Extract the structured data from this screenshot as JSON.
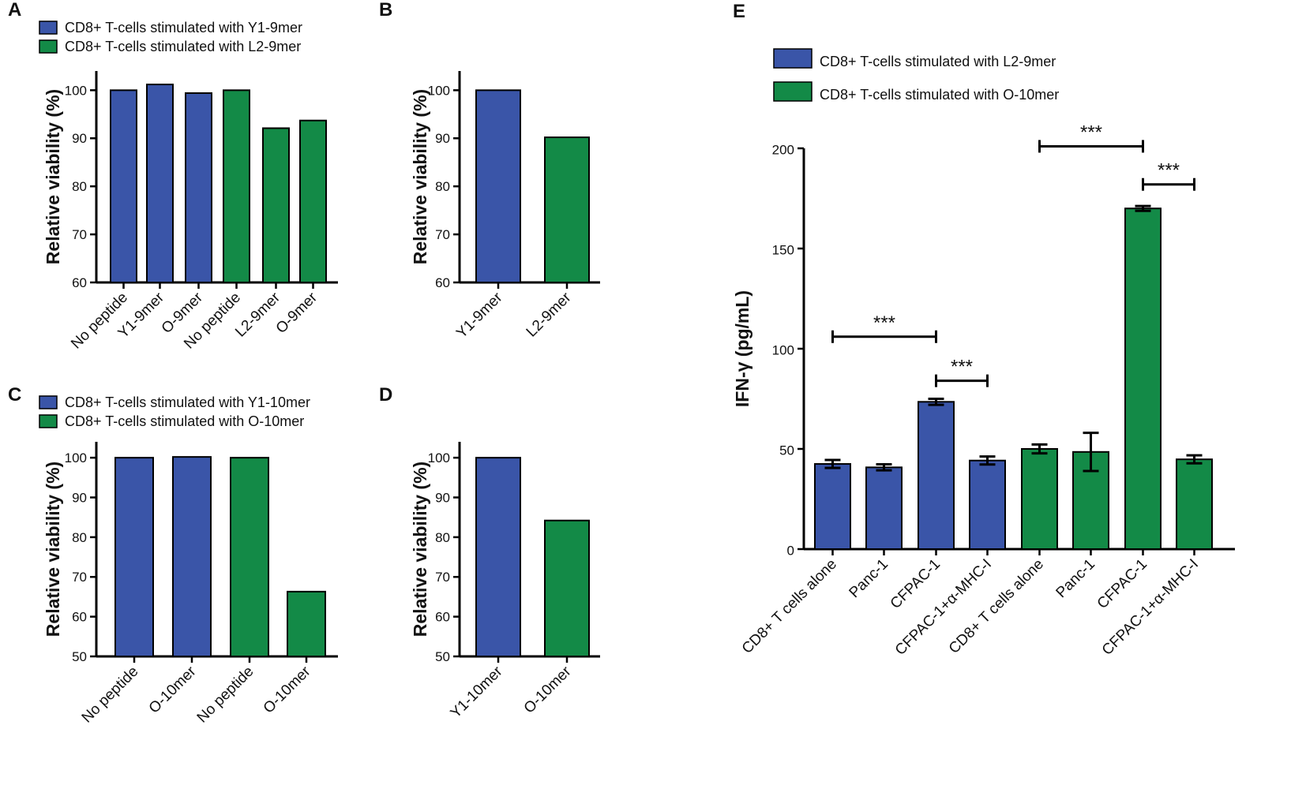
{
  "colors": {
    "blue": "#3a55a8",
    "green": "#138a47"
  },
  "chart_data": [
    {
      "panel": "A",
      "type": "bar",
      "categories": [
        "No peptide",
        "Y1-9mer",
        "O-9mer",
        "No peptide",
        "L2-9mer",
        "O-9mer"
      ],
      "values": [
        100,
        101.2,
        99.4,
        100,
        92.1,
        93.7
      ],
      "bar_colors": [
        "blue",
        "blue",
        "blue",
        "green",
        "green",
        "green"
      ],
      "legend": [
        {
          "label": "CD8+ T-cells stimulated with Y1-9mer",
          "color": "blue"
        },
        {
          "label": "CD8+ T-cells stimulated with L2-9mer",
          "color": "green"
        }
      ],
      "ylabel": "Relative viability (%)",
      "ylim": [
        60,
        104
      ],
      "yticks": [
        60,
        70,
        80,
        90,
        100
      ]
    },
    {
      "panel": "B",
      "type": "bar",
      "categories": [
        "Y1-9mer",
        "L2-9mer"
      ],
      "values": [
        100,
        90.2
      ],
      "bar_colors": [
        "blue",
        "green"
      ],
      "legend": [],
      "ylabel": "Relative viability (%)",
      "ylim": [
        60,
        104
      ],
      "yticks": [
        60,
        70,
        80,
        90,
        100
      ]
    },
    {
      "panel": "C",
      "type": "bar",
      "categories": [
        "No peptide",
        "O-10mer",
        "No peptide",
        "O-10mer"
      ],
      "values": [
        100,
        100.2,
        100,
        66.3
      ],
      "bar_colors": [
        "blue",
        "blue",
        "green",
        "green"
      ],
      "legend": [
        {
          "label": "CD8+ T-cells stimulated with Y1-10mer",
          "color": "blue"
        },
        {
          "label": "CD8+ T-cells stimulated with O-10mer",
          "color": "green"
        }
      ],
      "ylabel": "Relative viability (%)",
      "ylim": [
        50,
        104
      ],
      "yticks": [
        50,
        60,
        70,
        80,
        90,
        100
      ]
    },
    {
      "panel": "D",
      "type": "bar",
      "categories": [
        "Y1-10mer",
        "O-10mer"
      ],
      "values": [
        100,
        84.2
      ],
      "bar_colors": [
        "blue",
        "green"
      ],
      "legend": [],
      "ylabel": "Relative viability (%)",
      "ylim": [
        50,
        104
      ],
      "yticks": [
        50,
        60,
        70,
        80,
        90,
        100
      ]
    },
    {
      "panel": "E",
      "type": "bar",
      "categories": [
        "CD8+ T cells alone",
        "Panc-1",
        "CFPAC-1",
        "CFPAC-1+α-MHC-I",
        "CD8+ T cells alone",
        "Panc-1",
        "CFPAC-1",
        "CFPAC-1+α-MHC-I"
      ],
      "values": [
        42.5,
        40.8,
        73.5,
        44.2,
        50.0,
        48.5,
        170.0,
        44.8
      ],
      "errors": [
        2.0,
        1.5,
        1.5,
        2.0,
        2.2,
        9.5,
        1.2,
        2.0
      ],
      "bar_colors": [
        "blue",
        "blue",
        "blue",
        "blue",
        "green",
        "green",
        "green",
        "green"
      ],
      "legend": [
        {
          "label": "CD8+ T-cells stimulated with L2-9mer",
          "color": "blue"
        },
        {
          "label": "CD8+ T-cells stimulated with O-10mer",
          "color": "green"
        }
      ],
      "ylabel": "IFN-γ (pg/mL)",
      "ylim": [
        0,
        200
      ],
      "yticks": [
        0,
        50,
        100,
        150,
        200
      ],
      "significance": [
        {
          "from": 0,
          "to": 2,
          "label": "***",
          "y": 106
        },
        {
          "from": 2,
          "to": 3,
          "label": "***",
          "y": 84
        },
        {
          "from": 4,
          "to": 6,
          "label": "***",
          "y": 201
        },
        {
          "from": 6,
          "to": 7,
          "label": "***",
          "y": 182
        }
      ]
    }
  ]
}
